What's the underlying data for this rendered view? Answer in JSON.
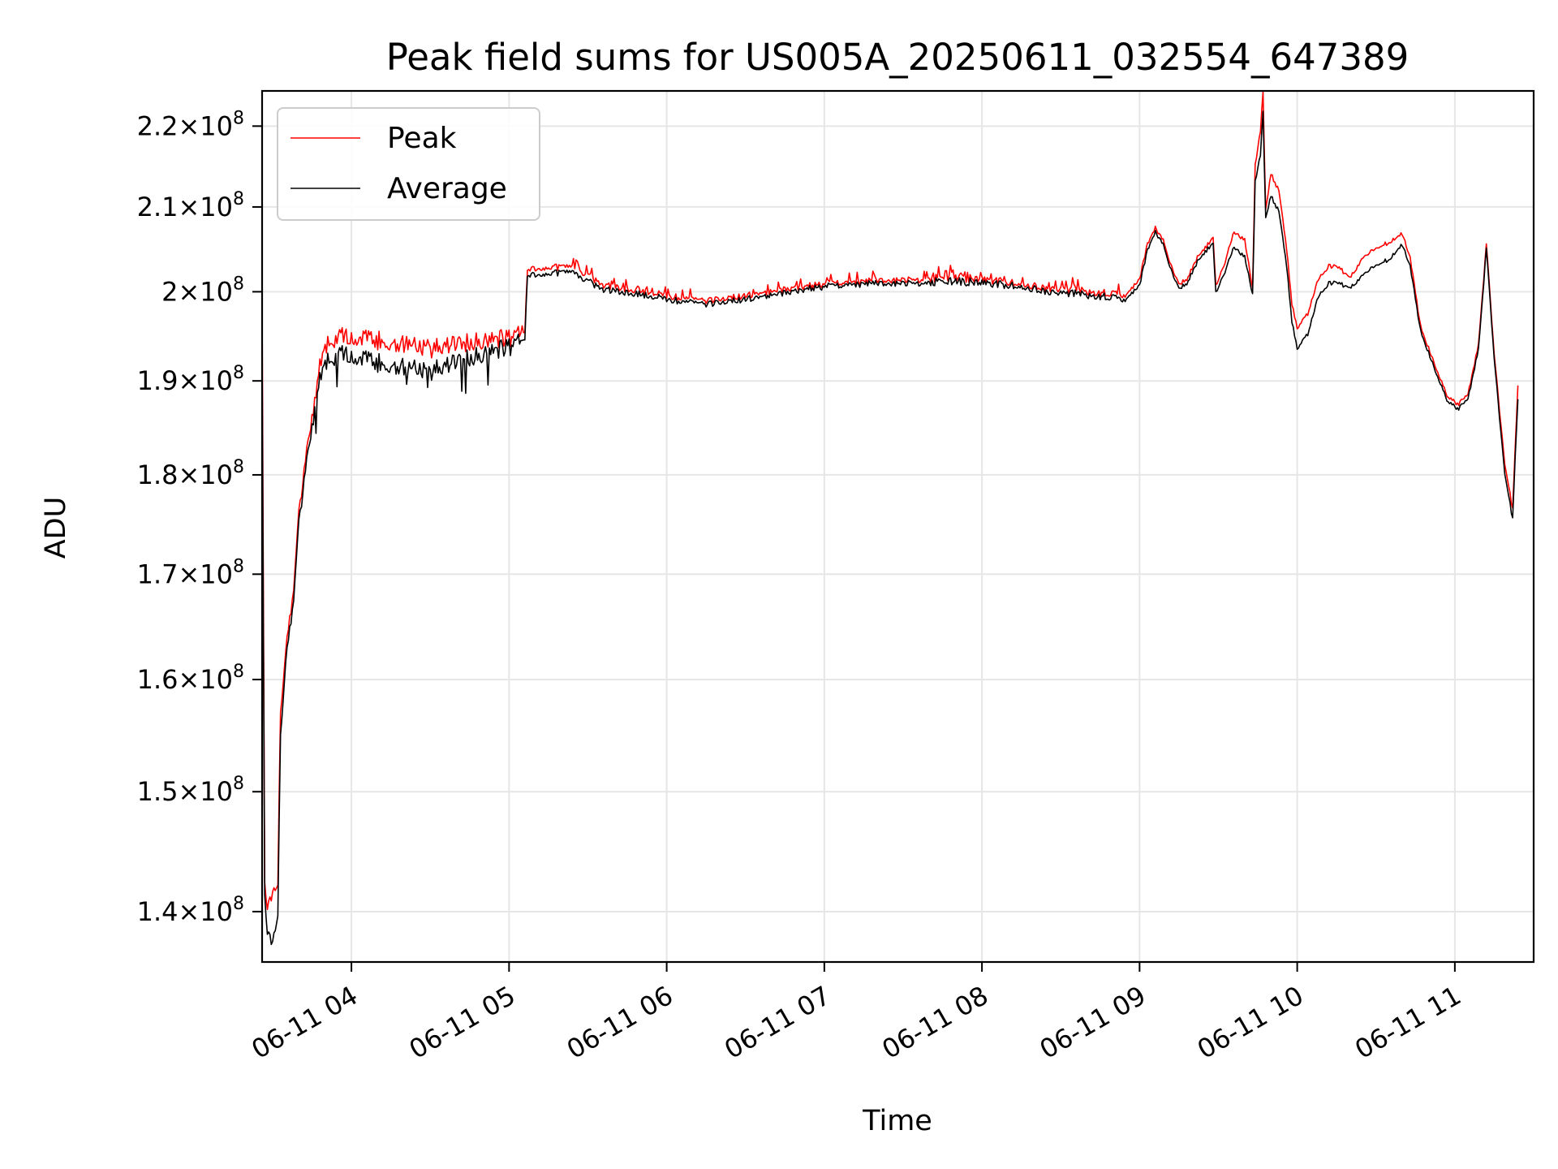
{
  "chart_data": {
    "type": "line",
    "title": "Peak field sums for US005A_20250611_032554_647389",
    "xlabel": "Time",
    "ylabel": "ADU",
    "y_scale": "log",
    "grid": true,
    "legend_position": "top-left",
    "xlim": [
      "2025-06-11 03:26",
      "2025-06-11 11:30"
    ],
    "ylim": [
      136000000,
      224500000
    ],
    "x_ticks": [
      {
        "value": "2025-06-11 04:00",
        "label": "06-11 04"
      },
      {
        "value": "2025-06-11 05:00",
        "label": "06-11 05"
      },
      {
        "value": "2025-06-11 06:00",
        "label": "06-11 06"
      },
      {
        "value": "2025-06-11 07:00",
        "label": "06-11 07"
      },
      {
        "value": "2025-06-11 08:00",
        "label": "06-11 08"
      },
      {
        "value": "2025-06-11 09:00",
        "label": "06-11 09"
      },
      {
        "value": "2025-06-11 10:00",
        "label": "06-11 10"
      },
      {
        "value": "2025-06-11 11:00",
        "label": "06-11 11"
      }
    ],
    "y_ticks": [
      {
        "value": 140000000,
        "mantissa": "1.4",
        "base": "10",
        "exp": "8"
      },
      {
        "value": 150000000,
        "mantissa": "1.5",
        "base": "10",
        "exp": "8"
      },
      {
        "value": 160000000,
        "mantissa": "1.6",
        "base": "10",
        "exp": "8"
      },
      {
        "value": 170000000,
        "mantissa": "1.7",
        "base": "10",
        "exp": "8"
      },
      {
        "value": 180000000,
        "mantissa": "1.8",
        "base": "10",
        "exp": "8"
      },
      {
        "value": 190000000,
        "mantissa": "1.9",
        "base": "10",
        "exp": "8"
      },
      {
        "value": 200000000,
        "mantissa": "2",
        "base": "10",
        "exp": "8"
      },
      {
        "value": 210000000,
        "mantissa": "2.1",
        "base": "10",
        "exp": "8"
      },
      {
        "value": 220000000,
        "mantissa": "2.2",
        "base": "10",
        "exp": "8"
      }
    ],
    "series": [
      {
        "name": "Peak",
        "color": "#ff0000",
        "points": [
          [
            "2025-06-11 03:26",
            198500000
          ],
          [
            "2025-06-11 03:27",
            142000000
          ],
          [
            "2025-06-11 03:28",
            140500000
          ],
          [
            "2025-06-11 03:30",
            141500000
          ],
          [
            "2025-06-11 03:32",
            142500000
          ],
          [
            "2025-06-11 03:33",
            157000000
          ],
          [
            "2025-06-11 03:35",
            163000000
          ],
          [
            "2025-06-11 03:38",
            168500000
          ],
          [
            "2025-06-11 03:40",
            176000000
          ],
          [
            "2025-06-11 03:43",
            182500000
          ],
          [
            "2025-06-11 03:46",
            188000000
          ],
          [
            "2025-06-11 03:48",
            192000000
          ],
          [
            "2025-06-11 03:52",
            194500000
          ],
          [
            "2025-06-11 03:58",
            195000000
          ],
          [
            "2025-06-11 04:10",
            194500000
          ],
          [
            "2025-06-11 04:20",
            194000000
          ],
          [
            "2025-06-11 04:30",
            193500000
          ],
          [
            "2025-06-11 04:40",
            194000000
          ],
          [
            "2025-06-11 04:50",
            194500000
          ],
          [
            "2025-06-11 05:00",
            194800000
          ],
          [
            "2025-06-11 05:06",
            195200000
          ],
          [
            "2025-06-11 05:07",
            202700000
          ],
          [
            "2025-06-11 05:15",
            202900000
          ],
          [
            "2025-06-11 05:25",
            202700000
          ],
          [
            "2025-06-11 05:30",
            202000000
          ],
          [
            "2025-06-11 05:35",
            200800000
          ],
          [
            "2025-06-11 05:45",
            200300000
          ],
          [
            "2025-06-11 05:55",
            199900000
          ],
          [
            "2025-06-11 06:05",
            199300000
          ],
          [
            "2025-06-11 06:15",
            199000000
          ],
          [
            "2025-06-11 06:30",
            199500000
          ],
          [
            "2025-06-11 06:45",
            200300000
          ],
          [
            "2025-06-11 07:00",
            200900000
          ],
          [
            "2025-06-11 07:15",
            201200000
          ],
          [
            "2025-06-11 07:30",
            201400000
          ],
          [
            "2025-06-11 07:45",
            201600000
          ],
          [
            "2025-06-11 08:00",
            201500000
          ],
          [
            "2025-06-11 08:15",
            200800000
          ],
          [
            "2025-06-11 08:30",
            200300000
          ],
          [
            "2025-06-11 08:45",
            199900000
          ],
          [
            "2025-06-11 08:55",
            199500000
          ],
          [
            "2025-06-11 09:00",
            201500000
          ],
          [
            "2025-06-11 09:03",
            205500000
          ],
          [
            "2025-06-11 09:06",
            207500000
          ],
          [
            "2025-06-11 09:09",
            206000000
          ],
          [
            "2025-06-11 09:12",
            203000000
          ],
          [
            "2025-06-11 09:15",
            200800000
          ],
          [
            "2025-06-11 09:18",
            201500000
          ],
          [
            "2025-06-11 09:22",
            204000000
          ],
          [
            "2025-06-11 09:26",
            205500000
          ],
          [
            "2025-06-11 09:28",
            206500000
          ],
          [
            "2025-06-11 09:29",
            200800000
          ],
          [
            "2025-06-11 09:32",
            203000000
          ],
          [
            "2025-06-11 09:36",
            207000000
          ],
          [
            "2025-06-11 09:40",
            206000000
          ],
          [
            "2025-06-11 09:43",
            200500000
          ],
          [
            "2025-06-11 09:44",
            215000000
          ],
          [
            "2025-06-11 09:46",
            219500000
          ],
          [
            "2025-06-11 09:47",
            224500000
          ],
          [
            "2025-06-11 09:48",
            209500000
          ],
          [
            "2025-06-11 09:50",
            214000000
          ],
          [
            "2025-06-11 09:53",
            212000000
          ],
          [
            "2025-06-11 09:56",
            205000000
          ],
          [
            "2025-06-11 09:58",
            198500000
          ],
          [
            "2025-06-11 10:00",
            195800000
          ],
          [
            "2025-06-11 10:04",
            197500000
          ],
          [
            "2025-06-11 10:08",
            201500000
          ],
          [
            "2025-06-11 10:12",
            203000000
          ],
          [
            "2025-06-11 10:16",
            202800000
          ],
          [
            "2025-06-11 10:20",
            201500000
          ],
          [
            "2025-06-11 10:25",
            204000000
          ],
          [
            "2025-06-11 10:30",
            205000000
          ],
          [
            "2025-06-11 10:35",
            205800000
          ],
          [
            "2025-06-11 10:40",
            206800000
          ],
          [
            "2025-06-11 10:43",
            204000000
          ],
          [
            "2025-06-11 10:47",
            196000000
          ],
          [
            "2025-06-11 10:52",
            192000000
          ],
          [
            "2025-06-11 10:57",
            188500000
          ],
          [
            "2025-06-11 11:01",
            187400000
          ],
          [
            "2025-06-11 11:05",
            188500000
          ],
          [
            "2025-06-11 11:09",
            194000000
          ],
          [
            "2025-06-11 11:12",
            205500000
          ],
          [
            "2025-06-11 11:15",
            193000000
          ],
          [
            "2025-06-11 11:19",
            181000000
          ],
          [
            "2025-06-11 11:22",
            176500000
          ],
          [
            "2025-06-11 11:23",
            183000000
          ],
          [
            "2025-06-11 11:24",
            189500000
          ]
        ]
      },
      {
        "name": "Average",
        "color": "#000000",
        "points": [
          [
            "2025-06-11 03:26",
            193000000
          ],
          [
            "2025-06-11 03:27",
            141000000
          ],
          [
            "2025-06-11 03:28",
            138500000
          ],
          [
            "2025-06-11 03:30",
            137500000
          ],
          [
            "2025-06-11 03:32",
            140000000
          ],
          [
            "2025-06-11 03:33",
            155000000
          ],
          [
            "2025-06-11 03:35",
            162000000
          ],
          [
            "2025-06-11 03:38",
            167500000
          ],
          [
            "2025-06-11 03:40",
            175000000
          ],
          [
            "2025-06-11 03:43",
            181500000
          ],
          [
            "2025-06-11 03:46",
            187000000
          ],
          [
            "2025-06-11 03:48",
            190500000
          ],
          [
            "2025-06-11 03:52",
            192500000
          ],
          [
            "2025-06-11 03:58",
            193000000
          ],
          [
            "2025-06-11 04:10",
            192000000
          ],
          [
            "2025-06-11 04:20",
            191500000
          ],
          [
            "2025-06-11 04:30",
            191000000
          ],
          [
            "2025-06-11 04:40",
            192000000
          ],
          [
            "2025-06-11 04:50",
            193000000
          ],
          [
            "2025-06-11 05:00",
            193800000
          ],
          [
            "2025-06-11 05:06",
            194400000
          ],
          [
            "2025-06-11 05:07",
            202000000
          ],
          [
            "2025-06-11 05:15",
            202200000
          ],
          [
            "2025-06-11 05:25",
            202100000
          ],
          [
            "2025-06-11 05:30",
            201300000
          ],
          [
            "2025-06-11 05:35",
            200300000
          ],
          [
            "2025-06-11 05:45",
            199900000
          ],
          [
            "2025-06-11 05:55",
            199500000
          ],
          [
            "2025-06-11 06:05",
            198900000
          ],
          [
            "2025-06-11 06:15",
            198600000
          ],
          [
            "2025-06-11 06:30",
            199100000
          ],
          [
            "2025-06-11 06:45",
            199900000
          ],
          [
            "2025-06-11 07:00",
            200600000
          ],
          [
            "2025-06-11 07:15",
            200900000
          ],
          [
            "2025-06-11 07:30",
            201000000
          ],
          [
            "2025-06-11 07:45",
            201200000
          ],
          [
            "2025-06-11 08:00",
            201100000
          ],
          [
            "2025-06-11 08:15",
            200500000
          ],
          [
            "2025-06-11 08:30",
            199900000
          ],
          [
            "2025-06-11 08:45",
            199500000
          ],
          [
            "2025-06-11 08:55",
            199000000
          ],
          [
            "2025-06-11 09:00",
            200800000
          ],
          [
            "2025-06-11 09:03",
            204800000
          ],
          [
            "2025-06-11 09:06",
            207000000
          ],
          [
            "2025-06-11 09:09",
            205500000
          ],
          [
            "2025-06-11 09:12",
            202500000
          ],
          [
            "2025-06-11 09:15",
            200300000
          ],
          [
            "2025-06-11 09:18",
            201000000
          ],
          [
            "2025-06-11 09:22",
            203500000
          ],
          [
            "2025-06-11 09:26",
            205000000
          ],
          [
            "2025-06-11 09:28",
            205800000
          ],
          [
            "2025-06-11 09:29",
            200000000
          ],
          [
            "2025-06-11 09:32",
            202000000
          ],
          [
            "2025-06-11 09:36",
            205200000
          ],
          [
            "2025-06-11 09:40",
            204000000
          ],
          [
            "2025-06-11 09:43",
            199800000
          ],
          [
            "2025-06-11 09:44",
            213000000
          ],
          [
            "2025-06-11 09:46",
            216500000
          ],
          [
            "2025-06-11 09:47",
            222000000
          ],
          [
            "2025-06-11 09:48",
            208500000
          ],
          [
            "2025-06-11 09:50",
            211300000
          ],
          [
            "2025-06-11 09:53",
            209500000
          ],
          [
            "2025-06-11 09:56",
            203000000
          ],
          [
            "2025-06-11 09:58",
            196500000
          ],
          [
            "2025-06-11 10:00",
            193500000
          ],
          [
            "2025-06-11 10:04",
            195200000
          ],
          [
            "2025-06-11 10:08",
            199500000
          ],
          [
            "2025-06-11 10:12",
            201000000
          ],
          [
            "2025-06-11 10:16",
            201000000
          ],
          [
            "2025-06-11 10:20",
            200300000
          ],
          [
            "2025-06-11 10:25",
            202000000
          ],
          [
            "2025-06-11 10:30",
            203000000
          ],
          [
            "2025-06-11 10:35",
            203800000
          ],
          [
            "2025-06-11 10:40",
            205500000
          ],
          [
            "2025-06-11 10:43",
            203000000
          ],
          [
            "2025-06-11 10:47",
            195500000
          ],
          [
            "2025-06-11 10:52",
            191500000
          ],
          [
            "2025-06-11 10:57",
            188000000
          ],
          [
            "2025-06-11 11:01",
            186900000
          ],
          [
            "2025-06-11 11:05",
            188000000
          ],
          [
            "2025-06-11 11:09",
            193500000
          ],
          [
            "2025-06-11 11:12",
            205000000
          ],
          [
            "2025-06-11 11:15",
            192500000
          ],
          [
            "2025-06-11 11:19",
            180000000
          ],
          [
            "2025-06-11 11:22",
            175500000
          ],
          [
            "2025-06-11 11:23",
            182000000
          ],
          [
            "2025-06-11 11:24",
            188000000
          ]
        ]
      }
    ]
  }
}
